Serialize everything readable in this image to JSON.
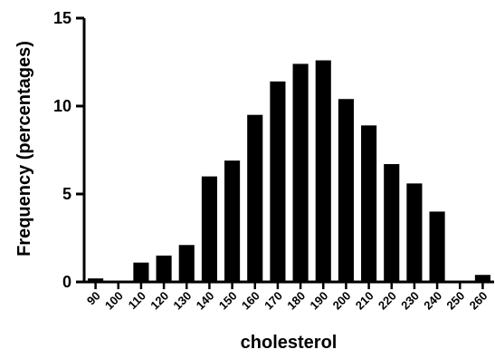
{
  "chart_data": {
    "type": "bar",
    "title": "",
    "xlabel": "cholesterol",
    "ylabel": "Frequency (percentages)",
    "categories": [
      "90",
      "100",
      "110",
      "120",
      "130",
      "140",
      "150",
      "160",
      "170",
      "180",
      "190",
      "200",
      "210",
      "220",
      "230",
      "240",
      "250",
      "260"
    ],
    "values": [
      0.2,
      0.0,
      1.1,
      1.5,
      2.1,
      6.0,
      6.9,
      9.5,
      11.4,
      12.4,
      12.6,
      10.4,
      8.9,
      6.7,
      5.6,
      4.0,
      0.0,
      0.4
    ],
    "ylim": [
      0,
      15
    ],
    "yticks": [
      "0",
      "5",
      "10",
      "15"
    ],
    "grid": false,
    "legend": "none",
    "bar_color": "#000000",
    "axis_color": "#000000"
  }
}
